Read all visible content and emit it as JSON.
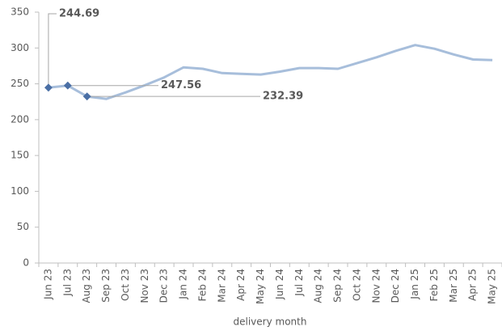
{
  "chart_data": {
    "type": "line",
    "x_label": "delivery month",
    "categories": [
      "Jun 23",
      "Jul 23",
      "Aug 23",
      "Sep 23",
      "Oct 23",
      "Nov 23",
      "Dec 23",
      "Jan 24",
      "Feb 24",
      "Mar 24",
      "Apr 24",
      "May 24",
      "Jun 24",
      "Jul 24",
      "Aug 24",
      "Sep 24",
      "Oct 24",
      "Nov 24",
      "Dec 24",
      "Jan 25",
      "Feb 25",
      "Mar 25",
      "Apr 25",
      "May 25"
    ],
    "values": [
      244.69,
      247.56,
      232.39,
      229,
      238,
      248,
      259,
      273,
      271,
      265,
      264,
      263,
      267,
      272,
      272,
      271,
      279,
      287,
      296,
      304,
      299,
      291,
      284,
      283
    ],
    "value_labels": [
      "244.69",
      "247.56",
      "232.39",
      null,
      null,
      null,
      null,
      null,
      null,
      null,
      null,
      null,
      null,
      null,
      null,
      null,
      null,
      null,
      null,
      null,
      null,
      null,
      null,
      null
    ],
    "color": "#a7bedb",
    "marker_color": "#4a6fa5",
    "ylim": [
      0,
      350
    ],
    "yticks": [
      0,
      50,
      100,
      150,
      200,
      250,
      300,
      350
    ],
    "grid": false
  }
}
